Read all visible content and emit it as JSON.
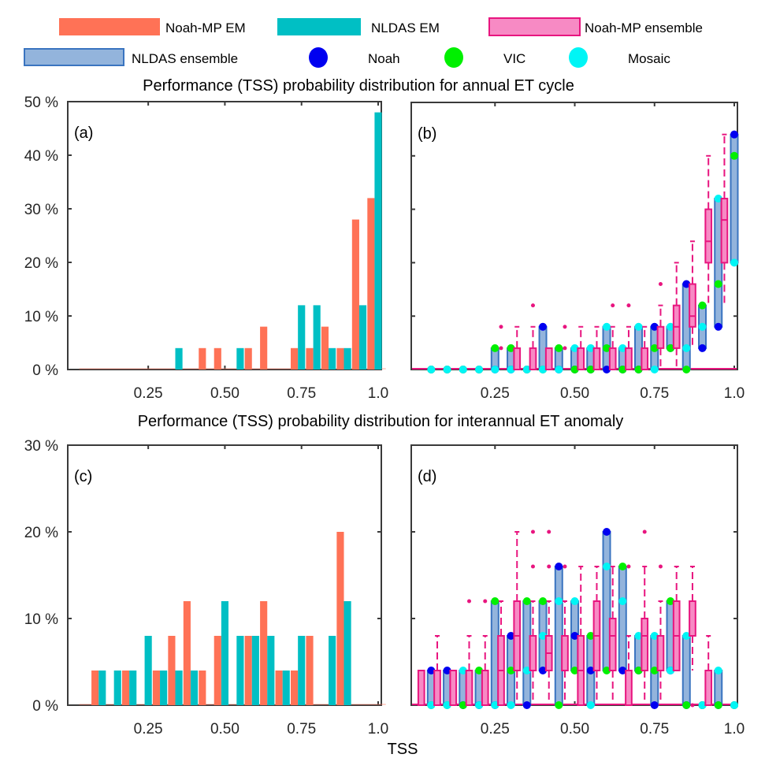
{
  "legend": {
    "items": [
      {
        "label": "Noah-MP EM",
        "kind": "bar",
        "fill": "#FF7256",
        "stroke": "#FF7256"
      },
      {
        "label": "NLDAS EM",
        "kind": "bar",
        "fill": "#00BFC4",
        "stroke": "#00BFC4"
      },
      {
        "label": "Noah-MP ensemble",
        "kind": "box",
        "fill": "#F78AC4",
        "stroke": "#E8157F"
      },
      {
        "label": "NLDAS ensemble",
        "kind": "box",
        "fill": "#93B4DC",
        "stroke": "#3A74C0"
      },
      {
        "label": "Noah",
        "kind": "dot",
        "fill": "#0000F0"
      },
      {
        "label": "VIC",
        "kind": "dot",
        "fill": "#00F000"
      },
      {
        "label": "Mosaic",
        "kind": "dot",
        "fill": "#00F5F5"
      }
    ]
  },
  "titles": {
    "top": "Performance (TSS) probability distribution for annual ET cycle",
    "bottom": "Performance (TSS) probability distribution for interannual ET anomaly",
    "xlabel": "TSS"
  },
  "chart_data": [
    {
      "id": "a",
      "panel_label": "(a)",
      "type": "bar",
      "title": "Performance (TSS) probability distribution for annual ET cycle",
      "xlabel": "TSS",
      "ylabel": "",
      "xlim": [
        0,
        1.0
      ],
      "ylim": [
        0,
        50
      ],
      "xticks": [
        0.25,
        0.5,
        0.75,
        1.0
      ],
      "xtick_labels": [
        "0.25",
        "0.50",
        "0.75",
        "1.0"
      ],
      "yticks": [
        0,
        10,
        20,
        30,
        40,
        50
      ],
      "ytick_labels": [
        "0 %",
        "10 %",
        "20 %",
        "30 %",
        "40 %",
        "50 %"
      ],
      "categories": [
        0.05,
        0.1,
        0.15,
        0.2,
        0.25,
        0.3,
        0.35,
        0.4,
        0.45,
        0.5,
        0.55,
        0.6,
        0.65,
        0.7,
        0.75,
        0.8,
        0.85,
        0.9,
        0.95,
        1.0
      ],
      "series": [
        {
          "name": "Noah-MP EM",
          "color": "#FF7256",
          "values": [
            0,
            0,
            0,
            0,
            0,
            0,
            0,
            0,
            4,
            4,
            0,
            4,
            8,
            0,
            4,
            4,
            8,
            4,
            28,
            32
          ]
        },
        {
          "name": "NLDAS EM",
          "color": "#00BFC4",
          "values": [
            0,
            0,
            0,
            0,
            0,
            0,
            4,
            0,
            0,
            0,
            4,
            0,
            0,
            0,
            12,
            12,
            4,
            4,
            12,
            48
          ]
        }
      ]
    },
    {
      "id": "b",
      "panel_label": "(b)",
      "type": "box",
      "title": "Performance (TSS) probability distribution for annual ET cycle",
      "xlim": [
        0,
        1.0
      ],
      "ylim": [
        0,
        50
      ],
      "xticks": [
        0.25,
        0.5,
        0.75,
        1.0
      ],
      "xtick_labels": [
        "0.25",
        "0.50",
        "0.75",
        "1.0"
      ],
      "yticks": [
        0,
        10,
        20,
        30,
        40,
        50
      ],
      "categories": [
        0.05,
        0.1,
        0.15,
        0.2,
        0.25,
        0.3,
        0.35,
        0.4,
        0.45,
        0.5,
        0.55,
        0.6,
        0.65,
        0.7,
        0.75,
        0.8,
        0.85,
        0.9,
        0.95,
        1.0
      ],
      "noahmp_ensemble": [
        {
          "q1": 0,
          "q3": 0,
          "median": 0,
          "wlo": 0,
          "whi": 0,
          "outliers": []
        },
        {
          "q1": 0,
          "q3": 0,
          "median": 0,
          "wlo": 0,
          "whi": 0,
          "outliers": []
        },
        {
          "q1": 0,
          "q3": 0,
          "median": 0,
          "wlo": 0,
          "whi": 0,
          "outliers": []
        },
        {
          "q1": 0,
          "q3": 0,
          "median": 0,
          "wlo": 0,
          "whi": 0,
          "outliers": []
        },
        {
          "q1": 0,
          "q3": 0,
          "median": 0,
          "wlo": 0,
          "whi": 0,
          "outliers": []
        },
        {
          "q1": 0,
          "q3": 0,
          "median": 0,
          "wlo": 0,
          "whi": 0,
          "outliers": [
            4,
            8
          ]
        },
        {
          "q1": 0,
          "q3": 4,
          "median": 0,
          "wlo": 0,
          "whi": 8,
          "outliers": []
        },
        {
          "q1": 0,
          "q3": 4,
          "median": 0,
          "wlo": 0,
          "whi": 8,
          "outliers": [
            12
          ]
        },
        {
          "q1": 0,
          "q3": 4,
          "median": 0,
          "wlo": 0,
          "whi": 4,
          "outliers": []
        },
        {
          "q1": 0,
          "q3": 0,
          "median": 0,
          "wlo": 0,
          "whi": 0,
          "outliers": [
            4,
            8
          ]
        },
        {
          "q1": 0,
          "q3": 4,
          "median": 0,
          "wlo": 0,
          "whi": 8,
          "outliers": []
        },
        {
          "q1": 0,
          "q3": 4,
          "median": 0,
          "wlo": 0,
          "whi": 8,
          "outliers": []
        },
        {
          "q1": 0,
          "q3": 4,
          "median": 0,
          "wlo": 0,
          "whi": 8,
          "outliers": [
            12
          ]
        },
        {
          "q1": 0,
          "q3": 4,
          "median": 0,
          "wlo": 0,
          "whi": 8,
          "outliers": [
            12
          ]
        },
        {
          "q1": 0,
          "q3": 4,
          "median": 0,
          "wlo": 0,
          "whi": 8,
          "outliers": []
        },
        {
          "q1": 4,
          "q3": 8,
          "median": 4,
          "wlo": 0,
          "whi": 12,
          "outliers": [
            16
          ]
        },
        {
          "q1": 4,
          "q3": 12,
          "median": 8,
          "wlo": 0,
          "whi": 20,
          "outliers": []
        },
        {
          "q1": 8,
          "q3": 16,
          "median": 10,
          "wlo": 4,
          "whi": 24,
          "outliers": []
        },
        {
          "q1": 20,
          "q3": 30,
          "median": 24,
          "wlo": 12,
          "whi": 40,
          "outliers": []
        },
        {
          "q1": 20,
          "q3": 32,
          "median": 28,
          "wlo": 12,
          "whi": 44,
          "outliers": []
        }
      ],
      "nldas_ensemble": [
        {
          "lo": 0,
          "hi": 0,
          "Noah": 0,
          "VIC": 0,
          "Mosaic": 0
        },
        {
          "lo": 0,
          "hi": 0,
          "Noah": 0,
          "VIC": 0,
          "Mosaic": 0
        },
        {
          "lo": 0,
          "hi": 0,
          "Noah": 0,
          "VIC": 0,
          "Mosaic": 0
        },
        {
          "lo": 0,
          "hi": 0,
          "Noah": 0,
          "VIC": 0,
          "Mosaic": 0
        },
        {
          "lo": 0,
          "hi": 4,
          "Noah": 0,
          "VIC": 4,
          "Mosaic": 0
        },
        {
          "lo": 0,
          "hi": 4,
          "Noah": 0,
          "VIC": 4,
          "Mosaic": 0
        },
        {
          "lo": 0,
          "hi": 0,
          "Noah": 0,
          "VIC": 0,
          "Mosaic": 0
        },
        {
          "lo": 0,
          "hi": 8,
          "Noah": 8,
          "VIC": 0,
          "Mosaic": 0
        },
        {
          "lo": 0,
          "hi": 4,
          "Noah": 0,
          "VIC": 4,
          "Mosaic": 0
        },
        {
          "lo": 0,
          "hi": 4,
          "Noah": 0,
          "VIC": 0,
          "Mosaic": 4
        },
        {
          "lo": 0,
          "hi": 4,
          "Noah": 0,
          "VIC": 0,
          "Mosaic": 4
        },
        {
          "lo": 0,
          "hi": 8,
          "Noah": 0,
          "VIC": 4,
          "Mosaic": 8
        },
        {
          "lo": 0,
          "hi": 4,
          "Noah": 0,
          "VIC": 0,
          "Mosaic": 4
        },
        {
          "lo": 0,
          "hi": 8,
          "Noah": 0,
          "VIC": 0,
          "Mosaic": 8
        },
        {
          "lo": 0,
          "hi": 8,
          "Noah": 8,
          "VIC": 4,
          "Mosaic": 0
        },
        {
          "lo": 4,
          "hi": 8,
          "Noah": 4,
          "VIC": 4,
          "Mosaic": 8
        },
        {
          "lo": 0,
          "hi": 16,
          "Noah": 16,
          "VIC": 0,
          "Mosaic": 4
        },
        {
          "lo": 4,
          "hi": 12,
          "Noah": 4,
          "VIC": 12,
          "Mosaic": 8
        },
        {
          "lo": 8,
          "hi": 32,
          "Noah": 8,
          "VIC": 16,
          "Mosaic": 32
        },
        {
          "lo": 20,
          "hi": 44,
          "Noah": 44,
          "VIC": 40,
          "Mosaic": 20
        }
      ]
    },
    {
      "id": "c",
      "panel_label": "(c)",
      "type": "bar",
      "title": "Performance (TSS) probability distribution for interannual ET anomaly",
      "xlabel": "TSS",
      "xlim": [
        0,
        1.0
      ],
      "ylim": [
        0,
        30
      ],
      "xticks": [
        0.25,
        0.5,
        0.75,
        1.0
      ],
      "xtick_labels": [
        "0.25",
        "0.50",
        "0.75",
        "1.0"
      ],
      "yticks": [
        0,
        10,
        20,
        30
      ],
      "ytick_labels": [
        "0 %",
        "10 %",
        "20 %",
        "30 %"
      ],
      "categories": [
        0.05,
        0.1,
        0.15,
        0.2,
        0.25,
        0.3,
        0.35,
        0.4,
        0.45,
        0.5,
        0.55,
        0.6,
        0.65,
        0.7,
        0.75,
        0.8,
        0.85,
        0.9,
        0.95,
        1.0
      ],
      "series": [
        {
          "name": "Noah-MP EM",
          "color": "#FF7256",
          "values": [
            0,
            4,
            0,
            4,
            0,
            4,
            8,
            12,
            4,
            8,
            0,
            8,
            12,
            4,
            4,
            8,
            0,
            20,
            0,
            0
          ]
        },
        {
          "name": "NLDAS EM",
          "color": "#00BFC4",
          "values": [
            0,
            4,
            4,
            4,
            8,
            4,
            4,
            4,
            0,
            12,
            8,
            8,
            8,
            4,
            8,
            0,
            8,
            12,
            0,
            0
          ]
        }
      ]
    },
    {
      "id": "d",
      "panel_label": "(d)",
      "type": "box",
      "title": "Performance (TSS) probability distribution for interannual ET anomaly",
      "xlabel": "TSS",
      "xlim": [
        0,
        1.0
      ],
      "ylim": [
        0,
        30
      ],
      "xticks": [
        0.25,
        0.5,
        0.75,
        1.0
      ],
      "xtick_labels": [
        "0.25",
        "0.50",
        "0.75",
        "1.0"
      ],
      "yticks": [
        0,
        10,
        20,
        30
      ],
      "categories": [
        0.05,
        0.1,
        0.15,
        0.2,
        0.25,
        0.3,
        0.35,
        0.4,
        0.45,
        0.5,
        0.55,
        0.6,
        0.65,
        0.7,
        0.75,
        0.8,
        0.85,
        0.9,
        0.95,
        1.0
      ],
      "noahmp_ensemble": [
        {
          "q1": 0,
          "q3": 4,
          "median": 0,
          "wlo": 0,
          "whi": 4,
          "outliers": []
        },
        {
          "q1": 0,
          "q3": 4,
          "median": 0,
          "wlo": 0,
          "whi": 8,
          "outliers": []
        },
        {
          "q1": 0,
          "q3": 4,
          "median": 0,
          "wlo": 0,
          "whi": 4,
          "outliers": []
        },
        {
          "q1": 0,
          "q3": 4,
          "median": 0,
          "wlo": 0,
          "whi": 8,
          "outliers": [
            12
          ]
        },
        {
          "q1": 0,
          "q3": 4,
          "median": 0,
          "wlo": 0,
          "whi": 8,
          "outliers": [
            12
          ]
        },
        {
          "q1": 0,
          "q3": 8,
          "median": 4,
          "wlo": 0,
          "whi": 12,
          "outliers": []
        },
        {
          "q1": 4,
          "q3": 12,
          "median": 8,
          "wlo": 0,
          "whi": 20,
          "outliers": []
        },
        {
          "q1": 4,
          "q3": 8,
          "median": 4,
          "wlo": 0,
          "whi": 12,
          "outliers": [
            16,
            20
          ]
        },
        {
          "q1": 4,
          "q3": 8,
          "median": 6,
          "wlo": 0,
          "whi": 12,
          "outliers": [
            16,
            20
          ]
        },
        {
          "q1": 4,
          "q3": 8,
          "median": 4,
          "wlo": 0,
          "whi": 12,
          "outliers": [
            16
          ]
        },
        {
          "q1": 0,
          "q3": 8,
          "median": 4,
          "wlo": 0,
          "whi": 16,
          "outliers": []
        },
        {
          "q1": 4,
          "q3": 12,
          "median": 8,
          "wlo": 0,
          "whi": 16,
          "outliers": []
        },
        {
          "q1": 4,
          "q3": 10,
          "median": 8,
          "wlo": 0,
          "whi": 16,
          "outliers": []
        },
        {
          "q1": 0,
          "q3": 4,
          "median": 0,
          "wlo": 0,
          "whi": 8,
          "outliers": [
            16
          ]
        },
        {
          "q1": 4,
          "q3": 10,
          "median": 8,
          "wlo": 0,
          "whi": 16,
          "outliers": [
            20
          ]
        },
        {
          "q1": 4,
          "q3": 8,
          "median": 4,
          "wlo": 0,
          "whi": 12,
          "outliers": [
            16
          ]
        },
        {
          "q1": 4,
          "q3": 12,
          "median": 8,
          "wlo": 4,
          "whi": 16,
          "outliers": []
        },
        {
          "q1": 8,
          "q3": 12,
          "median": 8,
          "wlo": 4,
          "whi": 16,
          "outliers": [
            0
          ]
        },
        {
          "q1": 0,
          "q3": 4,
          "median": 0,
          "wlo": 0,
          "whi": 8,
          "outliers": []
        },
        {
          "q1": 0,
          "q3": 0,
          "median": 0,
          "wlo": 0,
          "whi": 0,
          "outliers": []
        }
      ],
      "nldas_ensemble": [
        {
          "lo": 0,
          "hi": 4,
          "Noah": 4,
          "VIC": 0,
          "Mosaic": 0
        },
        {
          "lo": 0,
          "hi": 4,
          "Noah": 4,
          "VIC": 0,
          "Mosaic": 0
        },
        {
          "lo": 0,
          "hi": 4,
          "Noah": 0,
          "VIC": 0,
          "Mosaic": 4
        },
        {
          "lo": 0,
          "hi": 4,
          "Noah": 0,
          "VIC": 4,
          "Mosaic": 0
        },
        {
          "lo": 0,
          "hi": 12,
          "Noah": 0,
          "VIC": 12,
          "Mosaic": 0
        },
        {
          "lo": 0,
          "hi": 8,
          "Noah": 8,
          "VIC": 4,
          "Mosaic": 0
        },
        {
          "lo": 0,
          "hi": 12,
          "Noah": 0,
          "VIC": 12,
          "Mosaic": 4
        },
        {
          "lo": 4,
          "hi": 12,
          "Noah": 4,
          "VIC": 12,
          "Mosaic": 8
        },
        {
          "lo": 0,
          "hi": 16,
          "Noah": 16,
          "VIC": 0,
          "Mosaic": 12
        },
        {
          "lo": 4,
          "hi": 12,
          "Noah": 8,
          "VIC": 4,
          "Mosaic": 12
        },
        {
          "lo": 0,
          "hi": 8,
          "Noah": 4,
          "VIC": 8,
          "Mosaic": 0
        },
        {
          "lo": 4,
          "hi": 20,
          "Noah": 20,
          "VIC": 4,
          "Mosaic": 16
        },
        {
          "lo": 4,
          "hi": 16,
          "Noah": 4,
          "VIC": 16,
          "Mosaic": 12
        },
        {
          "lo": 4,
          "hi": 8,
          "Noah": 4,
          "VIC": 4,
          "Mosaic": 8
        },
        {
          "lo": 0,
          "hi": 8,
          "Noah": 0,
          "VIC": 4,
          "Mosaic": 8
        },
        {
          "lo": 4,
          "hi": 12,
          "Noah": 4,
          "VIC": 12,
          "Mosaic": 4
        },
        {
          "lo": 0,
          "hi": 8,
          "Noah": 0,
          "VIC": 0,
          "Mosaic": 8
        },
        {
          "lo": 0,
          "hi": 0,
          "Noah": 0,
          "VIC": 0,
          "Mosaic": 0
        },
        {
          "lo": 0,
          "hi": 4,
          "Noah": 0,
          "VIC": 0,
          "Mosaic": 4
        },
        {
          "lo": 0,
          "hi": 0,
          "Noah": 0,
          "VIC": 0,
          "Mosaic": 0
        }
      ]
    }
  ]
}
